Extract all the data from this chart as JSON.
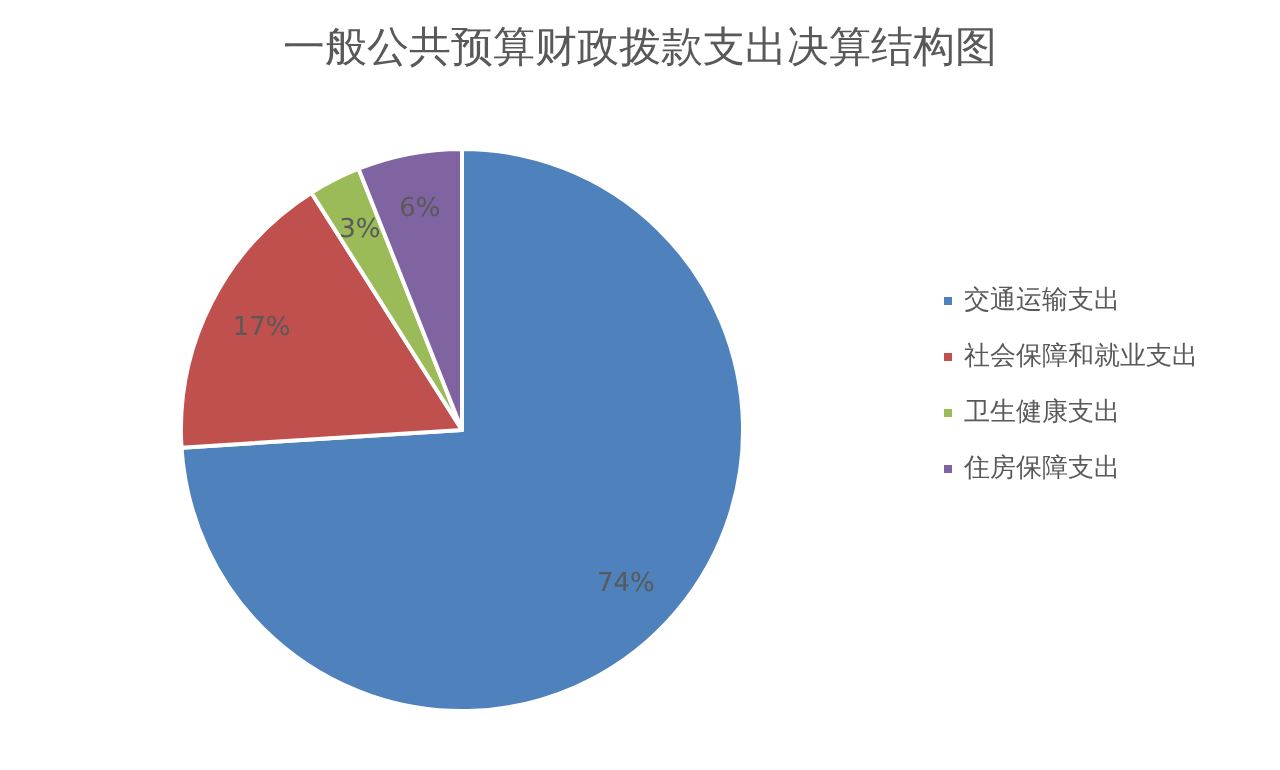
{
  "chart_data": {
    "type": "pie",
    "title": "一般公共预算财政拨款支出决算结构图",
    "categories": [
      "交通运输支出",
      "社会保障和就业支出",
      "卫生健康支出",
      "住房保障支出"
    ],
    "values": [
      74,
      17,
      3,
      6
    ],
    "colors": [
      "#4f81bd",
      "#c0504d",
      "#9bbb59",
      "#8064a2"
    ],
    "value_labels": [
      "74%",
      "17%",
      "3%",
      "6%"
    ],
    "legend": "right"
  }
}
